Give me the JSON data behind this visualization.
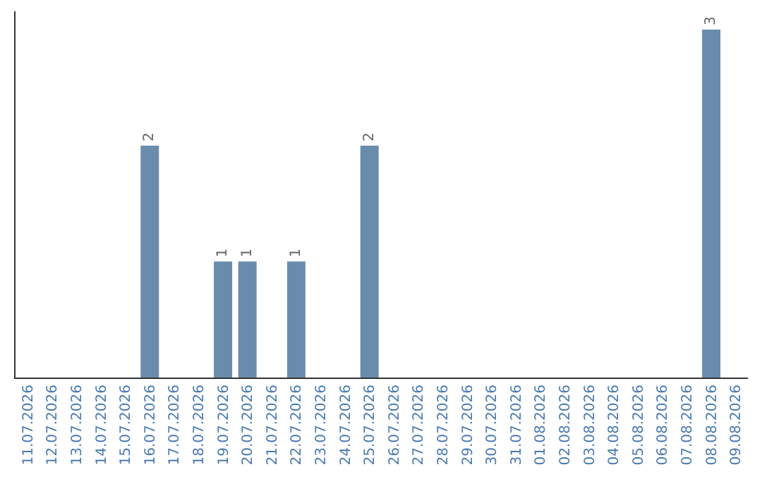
{
  "chart_data": {
    "type": "bar",
    "categories": [
      "11.07.2026",
      "12.07.2026",
      "13.07.2026",
      "14.07.2026",
      "15.07.2026",
      "16.07.2026",
      "17.07.2026",
      "18.07.2026",
      "19.07.2026",
      "20.07.2026",
      "21.07.2026",
      "22.07.2026",
      "23.07.2026",
      "24.07.2026",
      "25.07.2026",
      "26.07.2026",
      "27.07.2026",
      "28.07.2026",
      "29.07.2026",
      "30.07.2026",
      "31.07.2026",
      "01.08.2026",
      "02.08.2026",
      "03.08.2026",
      "04.08.2026",
      "05.08.2026",
      "06.08.2026",
      "07.08.2026",
      "08.08.2026",
      "09.08.2026"
    ],
    "values": [
      0,
      0,
      0,
      0,
      0,
      2,
      0,
      0,
      1,
      1,
      0,
      1,
      0,
      0,
      2,
      0,
      0,
      0,
      0,
      0,
      0,
      0,
      0,
      0,
      0,
      0,
      0,
      0,
      3,
      0
    ],
    "value_labels": [
      null,
      null,
      null,
      null,
      null,
      "2",
      null,
      null,
      "1",
      "1",
      null,
      "1",
      null,
      null,
      "2",
      null,
      null,
      null,
      null,
      null,
      null,
      null,
      null,
      null,
      null,
      null,
      null,
      null,
      "3",
      null
    ],
    "color": "#6a8cac",
    "tick_labels": "x",
    "legend": false
  }
}
